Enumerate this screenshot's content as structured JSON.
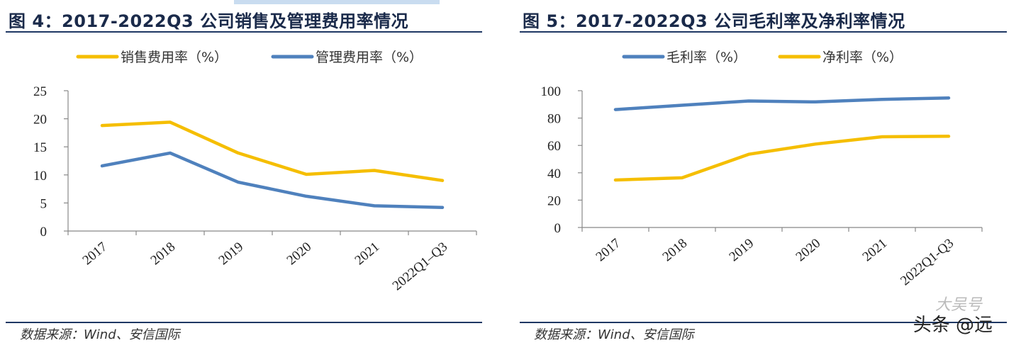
{
  "left": {
    "title": "图 4：2017-2022Q3 公司销售及管理费用率情况",
    "source": "数据来源：Wind、安信国际"
  },
  "right": {
    "title": "图 5：2017-2022Q3 公司毛利率及净利率情况",
    "source": "数据来源：Wind、安信国际"
  },
  "watermark": {
    "text": "头条 @远",
    "stamp": "大吴号"
  },
  "colors": {
    "yellow": "#F5BE00",
    "blue": "#4F81BD",
    "axis": "#888888",
    "title_bar": "#1f3864"
  },
  "chart_data": [
    {
      "type": "line",
      "title": "图 4：2017-2022Q3 公司销售及管理费用率情况",
      "categories": [
        "2017",
        "2018",
        "2019",
        "2020",
        "2021",
        "2022Q1–Q3"
      ],
      "series": [
        {
          "name": "销售费用率（%）",
          "color": "#F5BE00",
          "values": [
            18.8,
            19.4,
            13.9,
            10.1,
            10.8,
            9.0
          ]
        },
        {
          "name": "管理费用率（%）",
          "color": "#4F81BD",
          "values": [
            11.6,
            13.9,
            8.7,
            6.2,
            4.5,
            4.2
          ]
        }
      ],
      "ylim": [
        0,
        25
      ],
      "yticks": [
        "0",
        "5",
        "10",
        "15",
        "20",
        "25"
      ],
      "legend": "top"
    },
    {
      "type": "line",
      "title": "图 5：2017-2022Q3 公司毛利率及净利率情况",
      "categories": [
        "2017",
        "2018",
        "2019",
        "2020",
        "2021",
        "2022Q1-Q3"
      ],
      "series": [
        {
          "name": "毛利率（%）",
          "color": "#4F81BD",
          "values": [
            86.2,
            89.4,
            92.5,
            91.8,
            93.7,
            94.7
          ]
        },
        {
          "name": "净利率（%）",
          "color": "#F5BE00",
          "values": [
            34.7,
            36.3,
            53.5,
            61.0,
            66.3,
            66.7
          ]
        }
      ],
      "ylim": [
        0,
        100
      ],
      "yticks": [
        "0",
        "20",
        "40",
        "60",
        "80",
        "100"
      ],
      "legend": "top"
    }
  ]
}
